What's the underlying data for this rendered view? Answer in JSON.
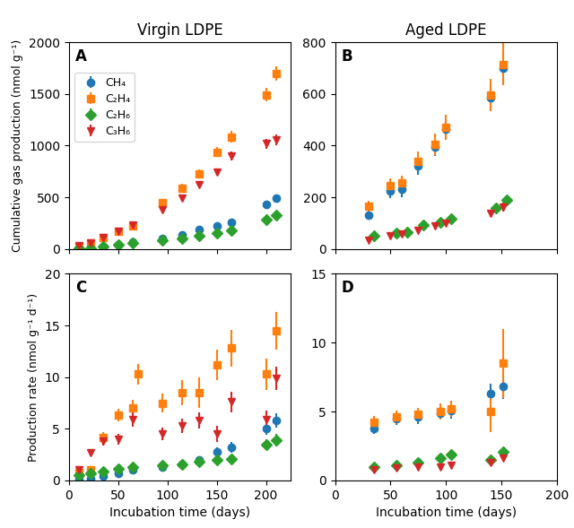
{
  "chart_data": [
    {
      "type": "scatter",
      "title": "Virgin LDPE",
      "y_label": "Cumulative gas production (nmol g⁻¹)",
      "annotations": [
        "A"
      ],
      "legend": "upper left",
      "tick_labels": "y",
      "xlim": [
        0,
        225
      ],
      "ylim": [
        0,
        2000
      ],
      "xticks": [
        0,
        50,
        100,
        150,
        200
      ],
      "yticks": [
        0,
        500,
        1000,
        1500,
        2000
      ],
      "series": [
        {
          "name": "CH₄",
          "marker": "circle",
          "x": [
            10,
            22,
            35,
            50,
            65,
            95,
            115,
            132,
            150,
            165,
            200,
            210
          ],
          "values": [
            5,
            10,
            25,
            45,
            65,
            105,
            140,
            185,
            225,
            260,
            435,
            490
          ],
          "yerr": [
            2,
            2,
            4,
            6,
            8,
            12,
            14,
            18,
            22,
            28,
            32,
            38
          ]
        },
        {
          "name": "C₂H₄",
          "marker": "square",
          "x": [
            10,
            22,
            35,
            50,
            65,
            95,
            115,
            132,
            150,
            165,
            200,
            210
          ],
          "values": [
            25,
            55,
            110,
            175,
            225,
            450,
            590,
            730,
            935,
            1085,
            1490,
            1700
          ],
          "yerr": [
            4,
            7,
            12,
            16,
            20,
            30,
            38,
            42,
            48,
            55,
            65,
            70
          ]
        },
        {
          "name": "C₂H₆",
          "marker": "diamond",
          "x": [
            10,
            22,
            35,
            50,
            65,
            95,
            115,
            132,
            150,
            165,
            200,
            210
          ],
          "values": [
            5,
            10,
            22,
            42,
            58,
            80,
            100,
            125,
            155,
            180,
            285,
            330
          ],
          "yerr": [
            2,
            2,
            4,
            6,
            8,
            10,
            12,
            14,
            16,
            18,
            24,
            28
          ]
        },
        {
          "name": "C₃H₆",
          "marker": "triangle_down",
          "x": [
            10,
            22,
            35,
            50,
            65,
            95,
            115,
            132,
            150,
            165,
            200,
            210
          ],
          "values": [
            35,
            60,
            110,
            170,
            235,
            380,
            490,
            625,
            745,
            900,
            1020,
            1055
          ],
          "yerr": [
            4,
            6,
            10,
            14,
            18,
            22,
            26,
            30,
            36,
            42,
            48,
            52
          ]
        }
      ]
    },
    {
      "type": "scatter",
      "title": "Aged LDPE",
      "annotations": [
        "B"
      ],
      "tick_labels": "y",
      "xlim": [
        0,
        200
      ],
      "ylim": [
        0,
        800
      ],
      "xticks": [
        0,
        50,
        100,
        150,
        200
      ],
      "yticks": [
        0,
        200,
        400,
        600,
        800
      ],
      "series": [
        {
          "name": "CH₄",
          "marker": "circle",
          "x": [
            30,
            50,
            60,
            75,
            90,
            100,
            140,
            152
          ],
          "values": [
            130,
            225,
            230,
            320,
            395,
            465,
            585,
            700
          ],
          "yerr": [
            18,
            28,
            30,
            34,
            36,
            40,
            52,
            58
          ]
        },
        {
          "name": "C₂H₄",
          "marker": "square",
          "x": [
            30,
            50,
            60,
            75,
            90,
            100,
            140,
            152
          ],
          "values": [
            165,
            245,
            255,
            340,
            405,
            470,
            595,
            715
          ],
          "yerr": [
            22,
            28,
            30,
            36,
            42,
            48,
            62,
            82
          ]
        },
        {
          "name": "C₂H₆",
          "marker": "diamond",
          "x": [
            35,
            55,
            65,
            80,
            95,
            105,
            145,
            155
          ],
          "values": [
            50,
            60,
            65,
            92,
            102,
            118,
            160,
            190
          ],
          "yerr": [
            5,
            6,
            7,
            8,
            9,
            10,
            14,
            18
          ]
        },
        {
          "name": "C₃H₆",
          "marker": "triangle_down",
          "x": [
            30,
            50,
            60,
            75,
            90,
            100,
            140,
            152
          ],
          "values": [
            35,
            52,
            58,
            72,
            88,
            100,
            138,
            162
          ],
          "yerr": [
            4,
            5,
            6,
            7,
            8,
            9,
            13,
            16
          ]
        }
      ]
    },
    {
      "type": "scatter",
      "x_label": "Incubation time (days)",
      "y_label": "Production rate (nmol g⁻¹ d⁻¹)",
      "annotations": [
        "C"
      ],
      "xlim": [
        0,
        225
      ],
      "ylim": [
        0,
        20
      ],
      "xticks": [
        0,
        50,
        100,
        150,
        200
      ],
      "yticks": [
        0,
        5,
        10,
        15,
        20
      ],
      "series": [
        {
          "name": "CH₄",
          "marker": "circle",
          "x": [
            10,
            22,
            35,
            50,
            65,
            95,
            115,
            132,
            150,
            165,
            200,
            210
          ],
          "values": [
            0.05,
            0.15,
            0.4,
            0.7,
            1.0,
            1.3,
            1.6,
            2.0,
            2.8,
            3.2,
            5.0,
            5.8
          ],
          "yerr": [
            0.05,
            0.08,
            0.1,
            0.1,
            0.12,
            0.15,
            0.18,
            0.3,
            0.4,
            0.5,
            0.6,
            0.7
          ]
        },
        {
          "name": "C₂H₄",
          "marker": "square",
          "x": [
            10,
            22,
            35,
            50,
            65,
            70,
            95,
            115,
            132,
            150,
            165,
            200,
            210
          ],
          "values": [
            0.8,
            1.0,
            4.2,
            6.3,
            7.0,
            10.3,
            7.5,
            8.5,
            8.5,
            11.2,
            12.8,
            10.3,
            14.5
          ],
          "yerr": [
            0.1,
            0.2,
            0.5,
            0.6,
            0.8,
            1.0,
            0.9,
            1.2,
            1.5,
            1.5,
            1.8,
            1.5,
            1.8
          ]
        },
        {
          "name": "C₂H₆",
          "marker": "diamond",
          "x": [
            10,
            22,
            35,
            50,
            65,
            95,
            115,
            132,
            150,
            165,
            200,
            210
          ],
          "values": [
            0.5,
            0.7,
            0.9,
            1.1,
            1.3,
            1.5,
            1.6,
            1.8,
            2.0,
            2.1,
            3.5,
            3.9
          ],
          "yerr": [
            0.08,
            0.1,
            0.12,
            0.14,
            0.15,
            0.18,
            0.2,
            0.25,
            0.28,
            0.3,
            0.5,
            0.6
          ]
        },
        {
          "name": "C₃H₆",
          "marker": "triangle_down",
          "x": [
            10,
            22,
            35,
            50,
            65,
            95,
            115,
            132,
            150,
            165,
            200,
            210
          ],
          "values": [
            1.0,
            2.7,
            3.8,
            4.0,
            5.9,
            4.5,
            5.3,
            5.8,
            4.5,
            7.6,
            5.9,
            9.9
          ],
          "yerr": [
            0.2,
            0.3,
            0.4,
            0.5,
            0.7,
            0.6,
            0.7,
            0.8,
            0.8,
            1.0,
            0.9,
            1.1
          ]
        }
      ]
    },
    {
      "type": "scatter",
      "x_label": "Incubation time (days)",
      "annotations": [
        "D"
      ],
      "xlim": [
        0,
        200
      ],
      "ylim": [
        0,
        15
      ],
      "xticks": [
        0,
        50,
        100,
        150,
        200
      ],
      "yticks": [
        0,
        5,
        10,
        15
      ],
      "series": [
        {
          "name": "CH₄",
          "marker": "circle",
          "x": [
            35,
            55,
            75,
            95,
            105,
            140,
            152
          ],
          "values": [
            3.8,
            4.5,
            4.6,
            4.9,
            5.1,
            6.3,
            6.8
          ],
          "yerr": [
            0.4,
            0.5,
            0.5,
            0.5,
            0.6,
            0.7,
            0.9
          ]
        },
        {
          "name": "C₂H₄",
          "marker": "square",
          "x": [
            35,
            55,
            75,
            95,
            105,
            140,
            152
          ],
          "values": [
            4.2,
            4.6,
            4.8,
            5.0,
            5.2,
            5.0,
            8.5
          ],
          "yerr": [
            0.5,
            0.5,
            0.5,
            0.6,
            0.6,
            1.5,
            2.5
          ]
        },
        {
          "name": "C₂H₆",
          "marker": "diamond",
          "x": [
            35,
            55,
            75,
            95,
            105,
            140,
            152
          ],
          "values": [
            1.0,
            1.1,
            1.3,
            1.6,
            1.9,
            1.5,
            2.1
          ],
          "yerr": [
            0.1,
            0.1,
            0.15,
            0.18,
            0.2,
            0.2,
            0.3
          ]
        },
        {
          "name": "C₃H₆",
          "marker": "triangle_down",
          "x": [
            35,
            55,
            75,
            95,
            105,
            140,
            152
          ],
          "values": [
            0.8,
            0.9,
            1.0,
            1.0,
            1.1,
            1.3,
            1.6
          ],
          "yerr": [
            0.08,
            0.09,
            0.1,
            0.1,
            0.12,
            0.15,
            0.18
          ]
        }
      ]
    }
  ]
}
